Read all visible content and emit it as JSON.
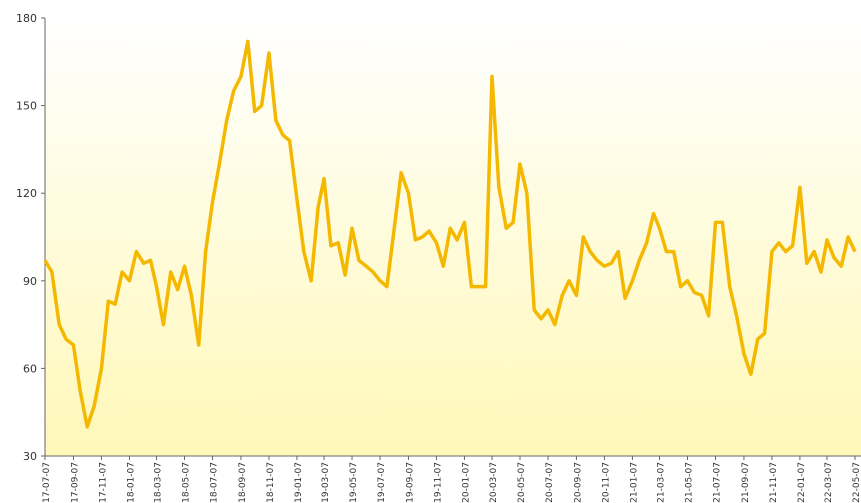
{
  "chart_data": {
    "type": "line",
    "x": [
      "2017-07-07",
      "2017-07-22",
      "2017-08-07",
      "2017-08-22",
      "2017-09-07",
      "2017-09-22",
      "2017-10-07",
      "2017-10-22",
      "2017-11-07",
      "2017-11-22",
      "2017-12-07",
      "2017-12-22",
      "2018-01-07",
      "2018-01-22",
      "2018-02-07",
      "2018-02-22",
      "2018-03-07",
      "2018-03-22",
      "2018-04-07",
      "2018-04-22",
      "2018-05-07",
      "2018-05-22",
      "2018-06-07",
      "2018-06-22",
      "2018-07-07",
      "2018-07-22",
      "2018-08-07",
      "2018-08-22",
      "2018-09-07",
      "2018-09-22",
      "2018-10-07",
      "2018-10-22",
      "2018-11-07",
      "2018-11-22",
      "2018-12-07",
      "2018-12-22",
      "2019-01-07",
      "2019-01-22",
      "2019-02-07",
      "2019-02-22",
      "2019-03-07",
      "2019-03-22",
      "2019-04-07",
      "2019-04-22",
      "2019-05-07",
      "2019-05-22",
      "2019-06-07",
      "2019-06-22",
      "2019-07-07",
      "2019-07-22",
      "2019-08-07",
      "2019-08-22",
      "2019-09-07",
      "2019-09-22",
      "2019-10-07",
      "2019-10-22",
      "2019-11-07",
      "2019-11-22",
      "2019-12-07",
      "2019-12-22",
      "2020-01-07",
      "2020-01-22",
      "2020-02-07",
      "2020-02-22",
      "2020-03-07",
      "2020-03-22",
      "2020-04-07",
      "2020-04-22",
      "2020-05-07",
      "2020-05-22",
      "2020-06-07",
      "2020-06-22",
      "2020-07-07",
      "2020-07-22",
      "2020-08-07",
      "2020-08-22",
      "2020-09-07",
      "2020-09-22",
      "2020-10-07",
      "2020-10-22",
      "2020-11-07",
      "2020-11-22",
      "2020-12-07",
      "2020-12-22",
      "2021-01-07",
      "2021-01-22",
      "2021-02-07",
      "2021-02-22",
      "2021-03-07",
      "2021-03-22",
      "2021-04-07",
      "2021-04-22",
      "2021-05-07",
      "2021-05-22",
      "2021-06-07",
      "2021-06-22",
      "2021-07-07",
      "2021-07-22",
      "2021-08-07",
      "2021-08-22",
      "2021-09-07",
      "2021-09-22",
      "2021-10-07",
      "2021-10-22",
      "2021-11-07",
      "2021-11-22",
      "2021-12-07",
      "2021-12-22",
      "2022-01-07",
      "2022-01-22",
      "2022-02-07",
      "2022-02-22",
      "2022-03-07",
      "2022-03-22",
      "2022-04-07",
      "2022-04-22",
      "2022-05-07"
    ],
    "series": [
      {
        "color": "#f5b800",
        "values": [
          97,
          93,
          75,
          70,
          68,
          52,
          40,
          47,
          60,
          83,
          82,
          93,
          90,
          100,
          96,
          97,
          88,
          75,
          93,
          87,
          95,
          85,
          68,
          100,
          117,
          130,
          145,
          155,
          160,
          172,
          148,
          150,
          168,
          145,
          140,
          138,
          118,
          100,
          90,
          115,
          125,
          102,
          103,
          92,
          108,
          97,
          95,
          93,
          90,
          88,
          108,
          127,
          120,
          104,
          105,
          107,
          103,
          95,
          108,
          104,
          110,
          88,
          88,
          88,
          160,
          122,
          108,
          110,
          130,
          120,
          80,
          77,
          80,
          75,
          85,
          90,
          85,
          105,
          100,
          97,
          95,
          96,
          100,
          84,
          90,
          97,
          103,
          113,
          108,
          100,
          100,
          88,
          90,
          86,
          85,
          78,
          110,
          110,
          88,
          78,
          65,
          58,
          70,
          72,
          100,
          103,
          100,
          102,
          122,
          96,
          100,
          93,
          104,
          98,
          95,
          105,
          100
        ]
      }
    ],
    "xlim": [
      "2017-07-07",
      "2022-05-07"
    ],
    "xticks": [
      "2017-07-07",
      "2017-09-07",
      "2017-11-07",
      "2018-01-07",
      "2018-03-07",
      "2018-05-07",
      "2018-07-07",
      "2018-09-07",
      "2018-11-07",
      "2019-01-07",
      "2019-03-07",
      "2019-05-07",
      "2019-07-07",
      "2019-09-07",
      "2019-11-07",
      "2020-01-07",
      "2020-03-07",
      "2020-05-07",
      "2020-07-07",
      "2020-09-07",
      "2020-11-07",
      "2021-01-07",
      "2021-03-07",
      "2021-05-07",
      "2021-07-07",
      "2021-09-07",
      "2021-11-07",
      "2022-01-07",
      "2022-03-07",
      "2022-05-07"
    ],
    "ylim": [
      30,
      180
    ],
    "yticks": [
      30,
      60,
      90,
      120,
      150,
      180
    ]
  }
}
